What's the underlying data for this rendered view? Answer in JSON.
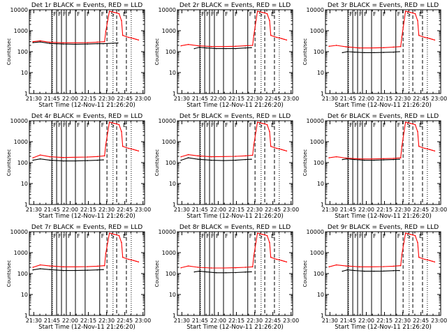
{
  "chart_data": [
    {
      "type": "line",
      "title": "Det 1r BLACK = Events, RED = LLD",
      "xlabel": "Start Time (12-Nov-11 21:26:20)",
      "ylabel": "Counts/sec",
      "x_ticks": [
        "21:30",
        "21:45",
        "22:00",
        "22:15",
        "22:30",
        "22:45",
        "23:00"
      ],
      "y_ticks": [
        "1",
        "10",
        "100",
        "1000",
        "10000"
      ],
      "y_scale": "log",
      "ylim": [
        1,
        10000
      ],
      "xlim_minutes": [
        0,
        95
      ],
      "markers": [
        "F",
        "F",
        "F",
        "F",
        "F",
        "F",
        "F",
        "S",
        "E"
      ],
      "series": [
        {
          "name": "BLACK",
          "color": "#000000",
          "x": [
            3,
            9,
            17,
            28,
            38,
            48,
            56,
            61,
            73
          ],
          "y": [
            270,
            290,
            245,
            230,
            225,
            230,
            240,
            240,
            260
          ]
        },
        {
          "name": "RED",
          "color": "#ff0000",
          "x": [
            3,
            9,
            17,
            28,
            38,
            48,
            56,
            62,
            63,
            66,
            68,
            70,
            72,
            74,
            76,
            77,
            80,
            82,
            84,
            86,
            88,
            90
          ],
          "y": [
            300,
            330,
            280,
            265,
            265,
            270,
            285,
            300,
            900,
            8500,
            8000,
            7500,
            7000,
            6500,
            3000,
            600,
            520,
            480,
            450,
            420,
            390,
            360
          ]
        }
      ]
    },
    {
      "type": "line",
      "title": "Det 2r BLACK = Events, RED = LLD",
      "xlabel": "Start Time (12-Nov-11 21:26:20)",
      "ylabel": "Counts/sec",
      "x_ticks": [
        "21:30",
        "21:45",
        "22:00",
        "22:15",
        "22:30",
        "22:45",
        "23:00"
      ],
      "y_ticks": [
        "1",
        "10",
        "100",
        "1000",
        "10000"
      ],
      "y_scale": "log",
      "ylim": [
        1,
        10000
      ],
      "xlim_minutes": [
        0,
        95
      ],
      "markers": [
        "F",
        "F",
        "F",
        "F",
        "F",
        "F",
        "F",
        "S",
        "E"
      ],
      "series": [
        {
          "name": "BLACK",
          "color": "#000000",
          "x": [
            14,
            18,
            24,
            32,
            40,
            48,
            56,
            61
          ],
          "y": [
            140,
            160,
            150,
            140,
            140,
            140,
            150,
            155
          ]
        },
        {
          "name": "RED",
          "color": "#ff0000",
          "x": [
            3,
            9,
            17,
            28,
            38,
            48,
            56,
            62,
            63,
            66,
            68,
            70,
            72,
            74,
            76,
            77,
            80,
            82,
            84,
            86,
            88,
            90
          ],
          "y": [
            190,
            220,
            190,
            175,
            175,
            180,
            190,
            200,
            600,
            8500,
            8000,
            7500,
            7000,
            6500,
            3000,
            600,
            520,
            480,
            450,
            420,
            390,
            360
          ]
        }
      ]
    },
    {
      "type": "line",
      "title": "Det 3r BLACK = Events, RED = LLD",
      "xlabel": "Start Time (12-Nov-11 21:26:20)",
      "ylabel": "Counts/sec",
      "x_ticks": [
        "21:30",
        "21:45",
        "22:00",
        "22:15",
        "22:30",
        "22:45",
        "23:00"
      ],
      "y_ticks": [
        "1",
        "10",
        "100",
        "1000",
        "10000"
      ],
      "y_scale": "log",
      "ylim": [
        1,
        10000
      ],
      "xlim_minutes": [
        0,
        95
      ],
      "markers": [
        "F",
        "F",
        "F",
        "F",
        "F",
        "F",
        "F",
        "S",
        "E"
      ],
      "series": [
        {
          "name": "BLACK",
          "color": "#000000",
          "x": [
            14,
            18,
            24,
            32,
            40,
            48,
            56,
            61
          ],
          "y": [
            90,
            100,
            95,
            90,
            90,
            92,
            95,
            100
          ]
        },
        {
          "name": "RED",
          "color": "#ff0000",
          "x": [
            3,
            9,
            17,
            28,
            38,
            48,
            56,
            62,
            63,
            66,
            68,
            70,
            72,
            74,
            76,
            77,
            80,
            82,
            84,
            86,
            88,
            90
          ],
          "y": [
            180,
            200,
            170,
            150,
            150,
            155,
            165,
            175,
            500,
            8500,
            8000,
            7500,
            7000,
            6500,
            3000,
            600,
            520,
            480,
            450,
            420,
            390,
            360
          ]
        }
      ]
    },
    {
      "type": "line",
      "title": "Det 4r BLACK = Events, RED = LLD",
      "xlabel": "Start Time (12-Nov-11 21:26:20)",
      "ylabel": "Counts/sec",
      "x_ticks": [
        "21:30",
        "21:45",
        "22:00",
        "22:15",
        "22:30",
        "22:45",
        "23:00"
      ],
      "y_ticks": [
        "1",
        "10",
        "100",
        "1000",
        "10000"
      ],
      "y_scale": "log",
      "ylim": [
        1,
        10000
      ],
      "xlim_minutes": [
        0,
        95
      ],
      "markers": [
        "F",
        "F",
        "F",
        "F",
        "F",
        "F",
        "F",
        "S",
        "E"
      ],
      "series": [
        {
          "name": "BLACK",
          "color": "#000000",
          "x": [
            3,
            9,
            17,
            28,
            38,
            48,
            56,
            61
          ],
          "y": [
            130,
            150,
            130,
            120,
            120,
            125,
            130,
            135
          ]
        },
        {
          "name": "RED",
          "color": "#ff0000",
          "x": [
            3,
            9,
            17,
            28,
            38,
            48,
            56,
            62,
            63,
            66,
            68,
            70,
            72,
            74,
            76,
            77,
            80,
            82,
            84,
            86,
            88,
            90
          ],
          "y": [
            170,
            230,
            190,
            175,
            180,
            185,
            195,
            210,
            700,
            8500,
            8000,
            7500,
            7000,
            6500,
            3000,
            600,
            520,
            480,
            450,
            420,
            390,
            360
          ]
        }
      ]
    },
    {
      "type": "line",
      "title": "Det 5r BLACK = Events, RED = LLD",
      "xlabel": "Start Time (12-Nov-11 21:26:20)",
      "ylabel": "Counts/sec",
      "x_ticks": [
        "21:30",
        "21:45",
        "22:00",
        "22:15",
        "22:30",
        "22:45",
        "23:00"
      ],
      "y_ticks": [
        "1",
        "10",
        "100",
        "1000",
        "10000"
      ],
      "y_scale": "log",
      "ylim": [
        1,
        10000
      ],
      "xlim_minutes": [
        0,
        95
      ],
      "markers": [
        "F",
        "F",
        "F",
        "F",
        "F",
        "F",
        "F",
        "S",
        "E"
      ],
      "series": [
        {
          "name": "BLACK",
          "color": "#000000",
          "x": [
            3,
            9,
            17,
            28,
            38,
            48,
            56,
            61
          ],
          "y": [
            130,
            170,
            145,
            130,
            125,
            130,
            140,
            145
          ]
        },
        {
          "name": "RED",
          "color": "#ff0000",
          "x": [
            3,
            9,
            17,
            28,
            38,
            48,
            56,
            62,
            63,
            66,
            68,
            70,
            72,
            74,
            76,
            77,
            80,
            82,
            84,
            86,
            88,
            90
          ],
          "y": [
            190,
            240,
            210,
            190,
            195,
            200,
            210,
            225,
            700,
            8500,
            8000,
            7500,
            7000,
            6500,
            3000,
            600,
            520,
            480,
            450,
            420,
            390,
            360
          ]
        }
      ]
    },
    {
      "type": "line",
      "title": "Det 6r BLACK = Events, RED = LLD",
      "xlabel": "Start Time (12-Nov-11 21:26:20)",
      "ylabel": "Counts/sec",
      "x_ticks": [
        "21:30",
        "21:45",
        "22:00",
        "22:15",
        "22:30",
        "22:45",
        "23:00"
      ],
      "y_ticks": [
        "1",
        "10",
        "100",
        "1000",
        "10000"
      ],
      "y_scale": "log",
      "ylim": [
        1,
        10000
      ],
      "xlim_minutes": [
        0,
        95
      ],
      "markers": [
        "F",
        "F",
        "F",
        "F",
        "F",
        "F",
        "F",
        "S",
        "E"
      ],
      "series": [
        {
          "name": "BLACK",
          "color": "#000000",
          "x": [
            14,
            18,
            24,
            32,
            40,
            48,
            56,
            61
          ],
          "y": [
            140,
            150,
            140,
            130,
            130,
            135,
            140,
            145
          ]
        },
        {
          "name": "RED",
          "color": "#ff0000",
          "x": [
            3,
            9,
            17,
            28,
            38,
            48,
            56,
            62,
            63,
            66,
            68,
            70,
            72,
            74,
            76,
            77,
            80,
            82,
            84,
            86,
            88,
            90
          ],
          "y": [
            170,
            190,
            165,
            150,
            150,
            155,
            160,
            170,
            600,
            8500,
            8000,
            7500,
            7000,
            6500,
            3000,
            600,
            520,
            480,
            450,
            420,
            390,
            360
          ]
        }
      ]
    },
    {
      "type": "line",
      "title": "Det 7r BLACK = Events, RED = LLD",
      "xlabel": "Start Time (12-Nov-11 21:26:20)",
      "ylabel": "Counts/sec",
      "x_ticks": [
        "21:30",
        "21:45",
        "22:00",
        "22:15",
        "22:30",
        "22:45",
        "23:00"
      ],
      "y_ticks": [
        "1",
        "10",
        "100",
        "1000",
        "10000"
      ],
      "y_scale": "log",
      "ylim": [
        1,
        10000
      ],
      "xlim_minutes": [
        0,
        95
      ],
      "markers": [
        "F",
        "F",
        "F",
        "F",
        "F",
        "F",
        "F",
        "S",
        "E"
      ],
      "series": [
        {
          "name": "BLACK",
          "color": "#000000",
          "x": [
            3,
            9,
            17,
            28,
            38,
            48,
            56,
            61
          ],
          "y": [
            150,
            170,
            155,
            140,
            140,
            145,
            150,
            155
          ]
        },
        {
          "name": "RED",
          "color": "#ff0000",
          "x": [
            3,
            9,
            17,
            28,
            38,
            48,
            56,
            62,
            63,
            66,
            68,
            70,
            72,
            74,
            76,
            77,
            80,
            82,
            84,
            86,
            88,
            90
          ],
          "y": [
            200,
            260,
            230,
            210,
            210,
            215,
            225,
            240,
            900,
            8500,
            8000,
            7500,
            7000,
            6500,
            3000,
            600,
            520,
            480,
            450,
            420,
            390,
            360
          ]
        }
      ]
    },
    {
      "type": "line",
      "title": "Det 8r BLACK = Events, RED = LLD",
      "xlabel": "Start Time (12-Nov-11 21:26:20)",
      "ylabel": "Counts/sec",
      "x_ticks": [
        "21:30",
        "21:45",
        "22:00",
        "22:15",
        "22:30",
        "22:45",
        "23:00"
      ],
      "y_ticks": [
        "1",
        "10",
        "100",
        "1000",
        "10000"
      ],
      "y_scale": "log",
      "ylim": [
        1,
        10000
      ],
      "xlim_minutes": [
        0,
        95
      ],
      "markers": [
        "F",
        "F",
        "F",
        "F",
        "F",
        "F",
        "F",
        "S",
        "E"
      ],
      "series": [
        {
          "name": "BLACK",
          "color": "#000000",
          "x": [
            14,
            18,
            24,
            32,
            40,
            48,
            56,
            61
          ],
          "y": [
            120,
            130,
            120,
            110,
            110,
            112,
            118,
            122
          ]
        },
        {
          "name": "RED",
          "color": "#ff0000",
          "x": [
            3,
            9,
            17,
            28,
            38,
            48,
            56,
            62,
            63,
            66,
            68,
            70,
            72,
            74,
            76,
            77,
            80,
            82,
            84,
            86,
            88,
            90
          ],
          "y": [
            190,
            230,
            200,
            185,
            185,
            190,
            200,
            210,
            700,
            8500,
            8000,
            7500,
            7000,
            6500,
            3000,
            600,
            520,
            480,
            450,
            420,
            390,
            360
          ]
        }
      ]
    },
    {
      "type": "line",
      "title": "Det 9r BLACK = Events, RED = LLD",
      "xlabel": "Start Time (12-Nov-11 21:26:20)",
      "ylabel": "Counts/sec",
      "x_ticks": [
        "21:30",
        "21:45",
        "22:00",
        "22:15",
        "22:30",
        "22:45",
        "23:00"
      ],
      "y_ticks": [
        "1",
        "10",
        "100",
        "1000",
        "10000"
      ],
      "y_scale": "log",
      "ylim": [
        1,
        10000
      ],
      "xlim_minutes": [
        0,
        95
      ],
      "markers": [
        "F",
        "F",
        "F",
        "F",
        "F",
        "F",
        "F",
        "S",
        "E"
      ],
      "series": [
        {
          "name": "BLACK",
          "color": "#000000",
          "x": [
            14,
            18,
            24,
            32,
            40,
            48,
            56,
            61
          ],
          "y": [
            130,
            150,
            140,
            130,
            130,
            132,
            138,
            140
          ]
        },
        {
          "name": "RED",
          "color": "#ff0000",
          "x": [
            3,
            9,
            17,
            28,
            38,
            48,
            56,
            62,
            63,
            66,
            68,
            70,
            72,
            74,
            76,
            77,
            80,
            82,
            84,
            86,
            88,
            90
          ],
          "y": [
            210,
            260,
            230,
            210,
            210,
            215,
            225,
            240,
            800,
            8500,
            8000,
            7500,
            7000,
            6500,
            3000,
            600,
            520,
            480,
            450,
            420,
            390,
            360
          ]
        }
      ]
    }
  ],
  "markers_x_minutes": [
    18.5,
    22.5,
    26.5,
    30.5,
    38,
    46,
    58,
    66,
    76
  ],
  "dashed_x_minutes": [
    64,
    72,
    80
  ],
  "dotted_x_minutes": [
    19,
    69,
    84
  ]
}
